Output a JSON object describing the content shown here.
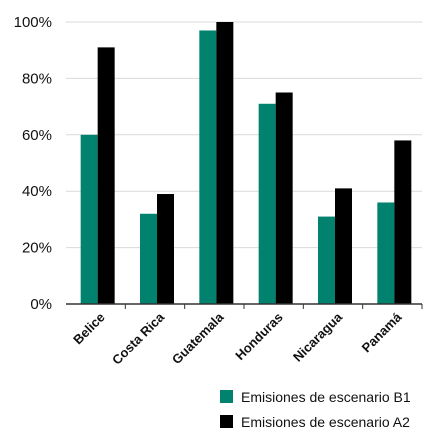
{
  "chart_data": {
    "type": "bar",
    "categories": [
      "Belice",
      "Costa Rica",
      "Guatemala",
      "Honduras",
      "Nicaragua",
      "Panamá"
    ],
    "series": [
      {
        "name": "Emisiones de escenario B1",
        "values": [
          60,
          32,
          97,
          71,
          31,
          36
        ],
        "color": "#00826f"
      },
      {
        "name": "Emisiones de escenario A2",
        "values": [
          91,
          39,
          100,
          75,
          41,
          58
        ],
        "color": "#000000"
      }
    ],
    "yticks": [
      "0%",
      "20%",
      "40%",
      "60%",
      "80%",
      "100%"
    ],
    "ylim": [
      0,
      100
    ],
    "grid": true,
    "legend_position": "bottom-right"
  }
}
